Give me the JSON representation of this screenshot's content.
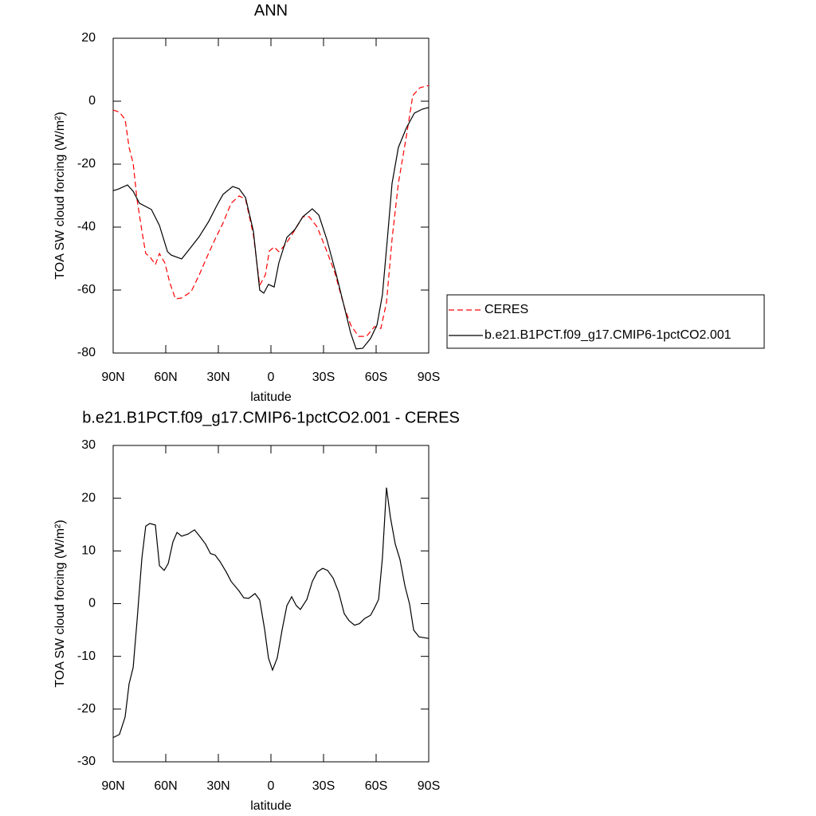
{
  "chart_data": [
    {
      "type": "line",
      "title": "ANN",
      "x_label": "latitude",
      "y_label": "TOA SW cloud forcing (W/m²)",
      "xlim": [
        90,
        -90
      ],
      "ylim": [
        -80,
        20
      ],
      "xticks": [
        {
          "value": 90,
          "label": "90N"
        },
        {
          "value": 60,
          "label": "60N"
        },
        {
          "value": 30,
          "label": "30N"
        },
        0,
        {
          "value": -30,
          "label": "30S"
        },
        {
          "value": -60,
          "label": "60S"
        },
        {
          "value": -90,
          "label": "90S"
        }
      ],
      "yticks": [
        20,
        0,
        -20,
        -40,
        -60,
        -80
      ],
      "legend": "right",
      "series": [
        {
          "name": "CERES",
          "color": "#ff0000",
          "line_style": "dashed",
          "x": [
            90,
            86.4,
            83.2,
            80.9,
            78.6,
            76.4,
            73.6,
            71.4,
            69.1,
            65.9,
            63.6,
            60.5,
            57.7,
            54.5,
            50.9,
            45.5,
            40.9,
            36.4,
            31.8,
            27.3,
            22.7,
            18.2,
            14.5,
            10,
            6.4,
            3.2,
            0.9,
            -1.8,
            -4.5,
            -8.2,
            -12.7,
            -18.2,
            -21.8,
            -26.4,
            -31.8,
            -36.4,
            -41.8,
            -45.5,
            -50,
            -54.5,
            -59.1,
            -62.7,
            -65.9,
            -69.1,
            -72.7,
            -77.3,
            -80.9,
            -85,
            -90
          ],
          "values": [
            -2.8,
            -3.5,
            -5.8,
            -14.7,
            -19.7,
            -31.1,
            -41.3,
            -48.4,
            -49.4,
            -51.9,
            -48.4,
            -51.4,
            -57.7,
            -62.8,
            -62.5,
            -60.5,
            -55.2,
            -49.4,
            -43.8,
            -38.7,
            -32.4,
            -30.1,
            -31.1,
            -42.5,
            -58.5,
            -55.2,
            -47.6,
            -46.3,
            -47.8,
            -45.6,
            -41.8,
            -36.7,
            -36.7,
            -40,
            -47.6,
            -54.4,
            -65.3,
            -71.1,
            -74.7,
            -74.7,
            -71.6,
            -72.2,
            -64,
            -43.8,
            -26.1,
            -10.9,
            1.8,
            4.3,
            5
          ]
        },
        {
          "name": "b.e21.B1PCT.f09_g17.CMIP6-1pctCO2.001",
          "color": "#000000",
          "line_style": "solid",
          "x": [
            90,
            87.3,
            81.8,
            78.6,
            75,
            68.2,
            63.6,
            59,
            56.8,
            50.9,
            45.5,
            40.9,
            35.5,
            30.9,
            27.3,
            21.8,
            18.2,
            14.5,
            10,
            6.4,
            4.1,
            1.4,
            -1.8,
            -4.5,
            -9.1,
            -13.6,
            -18.2,
            -23.6,
            -27.3,
            -31.8,
            -37.3,
            -41.8,
            -45.5,
            -48.6,
            -52.3,
            -56.8,
            -60.5,
            -63.6,
            -66.4,
            -69.1,
            -72.7,
            -77.3,
            -81.8,
            -86.4,
            -90
          ],
          "values": [
            -28.4,
            -28,
            -26.6,
            -28.6,
            -32.4,
            -34.4,
            -39.5,
            -47.8,
            -48.9,
            -50.1,
            -46.3,
            -43,
            -38.2,
            -33.2,
            -29.6,
            -27.1,
            -27.8,
            -30.6,
            -41.3,
            -60,
            -61,
            -58.2,
            -59,
            -51.4,
            -43.3,
            -40.8,
            -36.7,
            -34.2,
            -36.2,
            -43.8,
            -55.2,
            -65.3,
            -73.7,
            -78.7,
            -78.5,
            -75.4,
            -71.1,
            -61.5,
            -43.8,
            -26.1,
            -14.7,
            -8.4,
            -3.8,
            -2.5,
            -2
          ]
        }
      ]
    },
    {
      "type": "line",
      "title": "b.e21.B1PCT.f09_g17.CMIP6-1pctCO2.001 - CERES",
      "x_label": "latitude",
      "y_label": "TOA SW cloud forcing (W/m²)",
      "xlim": [
        90,
        -90
      ],
      "ylim": [
        -30,
        30
      ],
      "xticks": [
        {
          "value": 90,
          "label": "90N"
        },
        {
          "value": 60,
          "label": "60N"
        },
        {
          "value": 30,
          "label": "30N"
        },
        0,
        {
          "value": -30,
          "label": "30S"
        },
        {
          "value": -60,
          "label": "60S"
        },
        {
          "value": -90,
          "label": "90S"
        }
      ],
      "yticks": [
        30,
        20,
        10,
        0,
        -10,
        -20,
        -30
      ],
      "color": "#000000",
      "x": [
        90,
        86.4,
        83.2,
        80.9,
        78.6,
        76.4,
        73.6,
        71.4,
        69.1,
        65.9,
        63.6,
        60.9,
        58.6,
        55.9,
        53.6,
        50.9,
        47.3,
        43.6,
        40,
        37.3,
        34.5,
        31.8,
        29.1,
        25.5,
        22.7,
        18.2,
        15.5,
        12.7,
        9.1,
        6.4,
        3.6,
        1.4,
        -0.9,
        -3.6,
        -6.4,
        -9.1,
        -11.8,
        -14.5,
        -16.8,
        -20.5,
        -23.6,
        -26.4,
        -29.5,
        -32.3,
        -35.5,
        -38.6,
        -41.8,
        -44.5,
        -47.7,
        -50.5,
        -53.6,
        -56.8,
        -59.1,
        -61.4,
        -63.6,
        -65.9,
        -68.2,
        -70.9,
        -73.6,
        -76.4,
        -79.1,
        -81.4,
        -84.5,
        -90
      ],
      "values": [
        -25.4,
        -24.8,
        -21.5,
        -15.2,
        -12.1,
        -3.4,
        8.7,
        14.7,
        15.2,
        14.9,
        7.2,
        6.3,
        7.6,
        11.7,
        13.5,
        12.8,
        13.2,
        14,
        12.5,
        11.3,
        9.5,
        9.2,
        8,
        6,
        4.2,
        2.4,
        1.1,
        1,
        1.9,
        0.7,
        -4.9,
        -10.3,
        -12.6,
        -10.3,
        -4.9,
        -0.4,
        1.3,
        -0.4,
        -1.1,
        0.8,
        4.2,
        6,
        6.7,
        6.3,
        4.8,
        2.2,
        -1.9,
        -3.2,
        -4.1,
        -3.8,
        -2.8,
        -2.2,
        -0.8,
        0.8,
        8.7,
        22,
        16.3,
        11.3,
        8.4,
        3.4,
        -0.1,
        -5,
        -6.3,
        -6.6
      ]
    }
  ]
}
